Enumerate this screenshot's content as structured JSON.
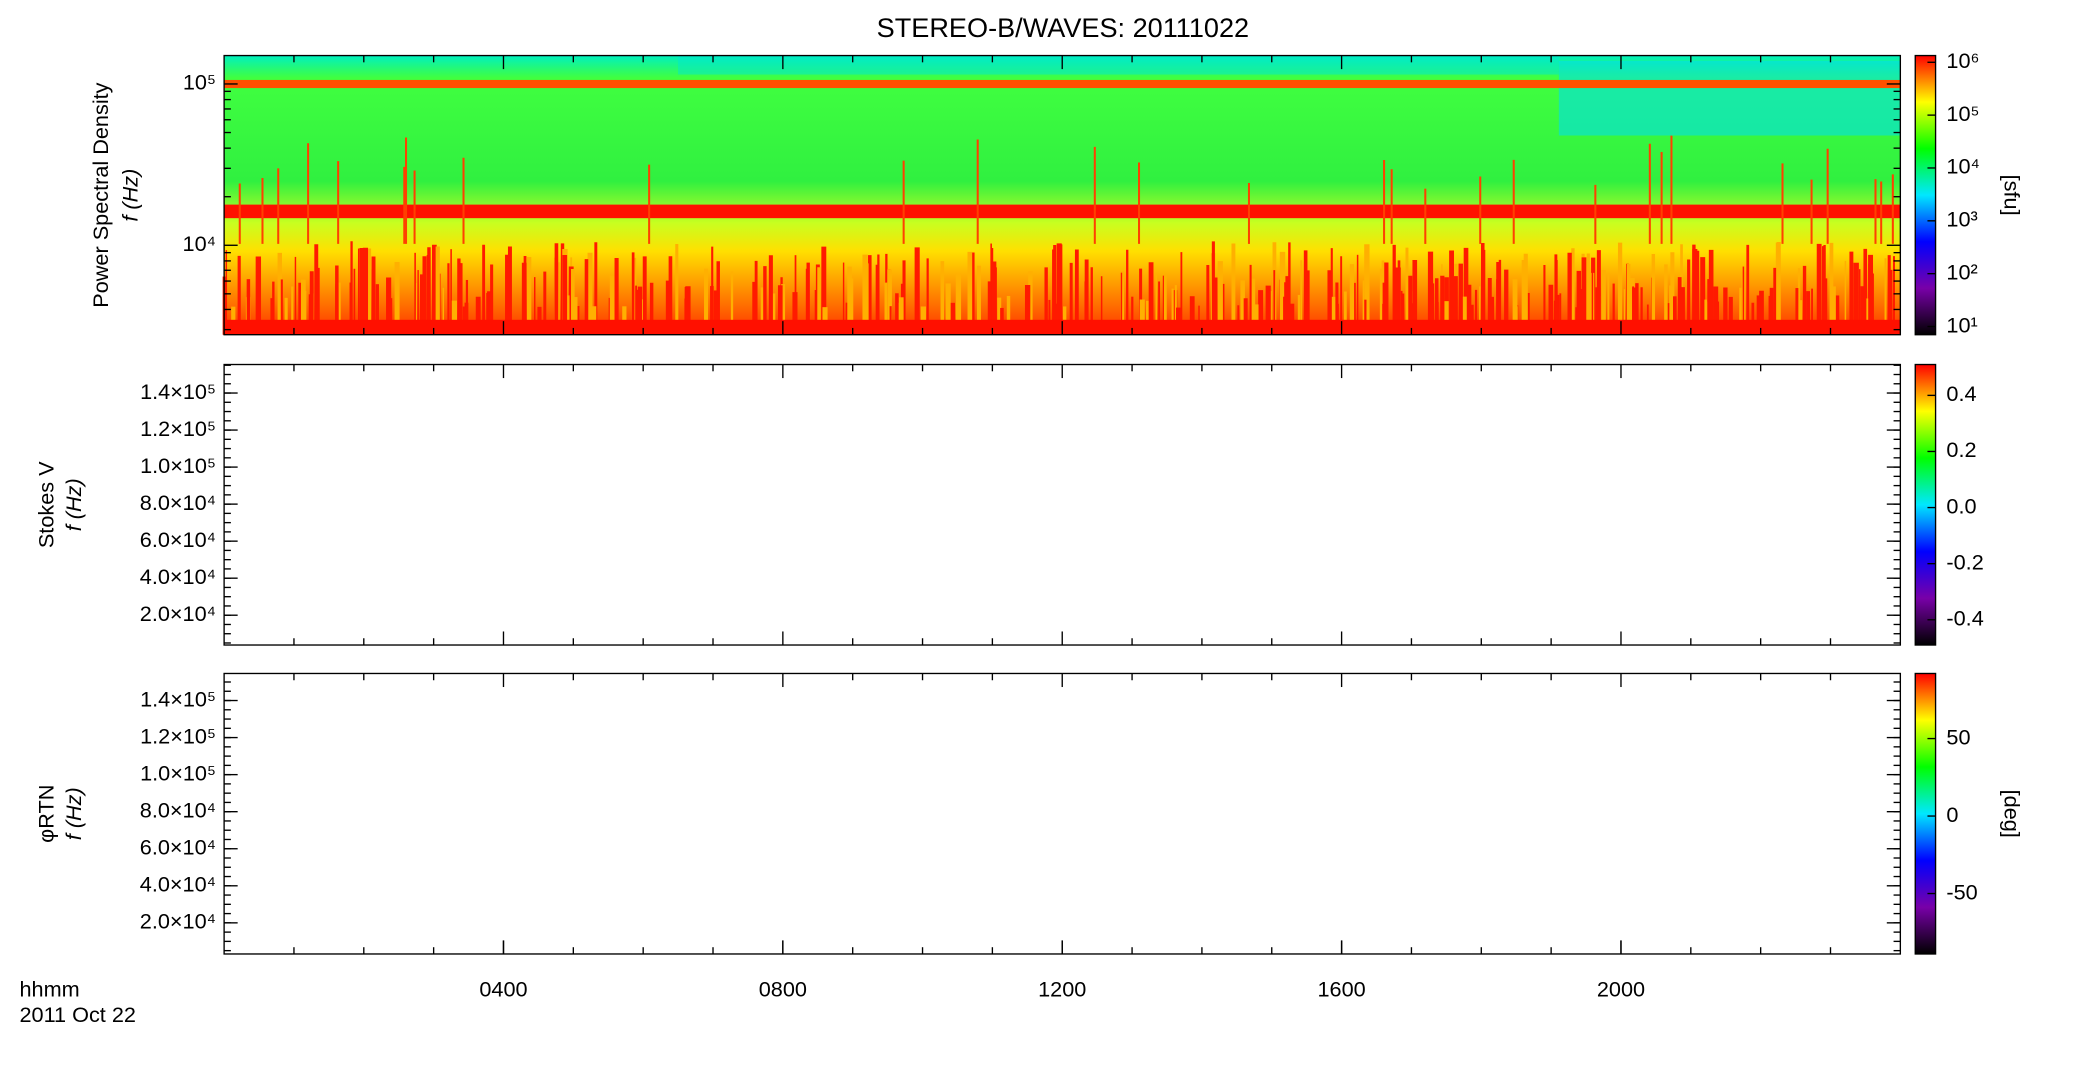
{
  "chart_data": [
    {
      "type": "heatmap",
      "title": "STEREO-B/WAVES: 20111022",
      "ylabel": [
        "Power Spectral Density",
        "f (Hz)"
      ],
      "xlim": [
        0,
        24
      ],
      "ylim": [
        2790,
        150000
      ],
      "yscale": "log",
      "yticks": [
        {
          "value": 10000,
          "label": "10⁴"
        },
        {
          "value": 100000,
          "label": "10⁵"
        }
      ],
      "colorbar": {
        "label": "[sfu]",
        "scale": "log",
        "lim": [
          7,
          1340000
        ],
        "ticks": [
          {
            "value": 10,
            "label": "10¹"
          },
          {
            "value": 100,
            "label": "10²"
          },
          {
            "value": 1000,
            "label": "10³"
          },
          {
            "value": 10000,
            "label": "10⁴"
          },
          {
            "value": 100000,
            "label": "10⁵"
          },
          {
            "value": 1000000,
            "label": "10⁶"
          }
        ],
        "colormap": [
          "#000000",
          "#7800a8",
          "#0000ff",
          "#00e8ff",
          "#00ff00",
          "#ffff00",
          "#ff0000"
        ]
      }
    },
    {
      "type": "heatmap",
      "ylabel": [
        "Stokes V",
        "f (Hz)"
      ],
      "xlim": [
        0,
        24
      ],
      "ylim": [
        3900,
        155400
      ],
      "yscale": "linear",
      "yticks": [
        {
          "value": 20000,
          "label": "2.0×10⁴"
        },
        {
          "value": 40000,
          "label": "4.0×10⁴"
        },
        {
          "value": 60000,
          "label": "6.0×10⁴"
        },
        {
          "value": 80000,
          "label": "8.0×10⁴"
        },
        {
          "value": 100000,
          "label": "1.0×10⁵"
        },
        {
          "value": 120000,
          "label": "1.2×10⁵"
        },
        {
          "value": 140000,
          "label": "1.4×10⁵"
        }
      ],
      "colorbar": {
        "scale": "linear",
        "lim": [
          -0.49,
          0.51
        ],
        "ticks": [
          -0.4,
          -0.2,
          {
            "value": 0,
            "label": "0.0"
          },
          0.2,
          0.4
        ],
        "colormap": [
          "#000000",
          "#7800a8",
          "#0000ff",
          "#00e8ff",
          "#00ff00",
          "#ffff00",
          "#ff0000"
        ]
      }
    },
    {
      "type": "heatmap",
      "ylabel": [
        "φRTN",
        "f (Hz)"
      ],
      "xlim": [
        0,
        24
      ],
      "ylim": [
        3200,
        154600
      ],
      "yscale": "linear",
      "yticks": [
        {
          "value": 20000,
          "label": "2.0×10⁴"
        },
        {
          "value": 40000,
          "label": "4.0×10⁴"
        },
        {
          "value": 60000,
          "label": "6.0×10⁴"
        },
        {
          "value": 80000,
          "label": "8.0×10⁴"
        },
        {
          "value": 100000,
          "label": "1.0×10⁵"
        },
        {
          "value": 120000,
          "label": "1.2×10⁵"
        },
        {
          "value": 140000,
          "label": "1.4×10⁵"
        }
      ],
      "colorbar": {
        "label": "[deg]",
        "scale": "linear",
        "lim": [
          -89,
          92
        ],
        "ticks": [
          -50,
          0,
          50
        ],
        "colormap": [
          "#000000",
          "#7800a8",
          "#0000ff",
          "#00e8ff",
          "#00ff00",
          "#ffff00",
          "#ff0000"
        ]
      },
      "xlabel": "hhmm",
      "date": "2011 Oct 22",
      "xticks": [
        {
          "value": 4,
          "label": "0400"
        },
        {
          "value": 8,
          "label": "0800"
        },
        {
          "value": 12,
          "label": "1200"
        },
        {
          "value": 16,
          "label": "1600"
        },
        {
          "value": 20,
          "label": "2000"
        }
      ]
    }
  ]
}
